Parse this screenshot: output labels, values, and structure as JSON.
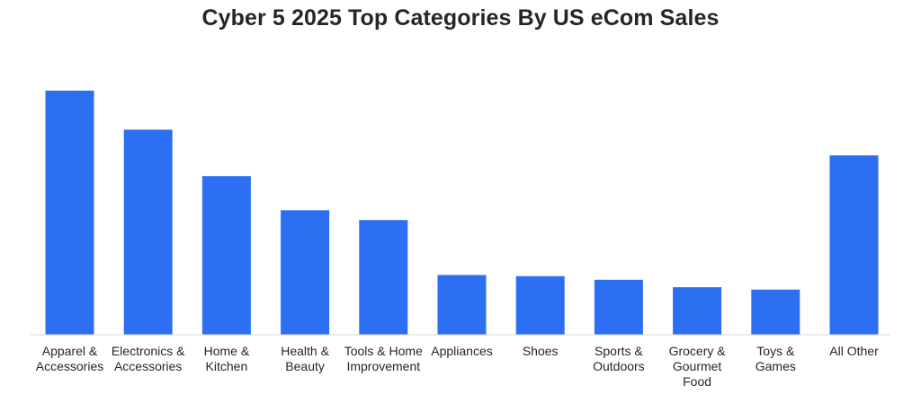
{
  "chart_data": {
    "type": "bar",
    "title": "Cyber 5 2025 Top Categories By US eCom Sales",
    "xlabel": "",
    "ylabel": "",
    "categories": [
      "Apparel & Accessories",
      "Electronics & Accessories",
      "Home & Kitchen",
      "Health & Beauty",
      "Tools & Home Improvement",
      "Appliances",
      "Shoes",
      "Sports & Outdoors",
      "Grocery & Gourmet Food",
      "Toys & Games",
      "All Other"
    ],
    "values": [
      100,
      84,
      65,
      51,
      47,
      24.5,
      24,
      22.5,
      19.5,
      18.5,
      73.5
    ],
    "ylim": [
      0,
      100
    ],
    "grid": false,
    "legend": "none",
    "bar_color": "#2D6FF2",
    "axis_color": "#D9D9D9",
    "text_color": "#262626"
  }
}
